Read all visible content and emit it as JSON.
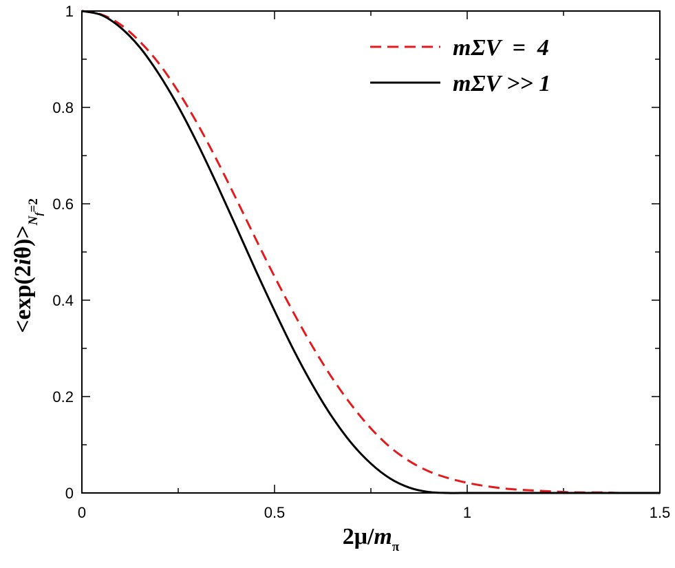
{
  "chart_data": {
    "type": "line",
    "xlabel": {
      "parts": [
        {
          "text": "2",
          "style": "normal"
        },
        {
          "text": "μ",
          "style": "normal"
        },
        {
          "text": "/",
          "style": "normal"
        },
        {
          "text": "m",
          "style": "italic"
        },
        {
          "text": "π",
          "style": "sub"
        }
      ]
    },
    "ylabel": {
      "parts": [
        {
          "text": "<exp(2",
          "style": "normal"
        },
        {
          "text": "i",
          "style": "italic"
        },
        {
          "text": "θ)>",
          "style": "normal"
        },
        {
          "text": "N",
          "style": "sub-italic"
        },
        {
          "text": "f",
          "style": "subsub-italic"
        },
        {
          "text": "=2",
          "style": "sub"
        }
      ]
    },
    "xlim": [
      0,
      1.5
    ],
    "ylim": [
      0,
      1
    ],
    "xticks": [
      {
        "value": 0,
        "label": "0"
      },
      {
        "value": 0.5,
        "label": "0.5"
      },
      {
        "value": 1,
        "label": "1"
      },
      {
        "value": 1.5,
        "label": "1.5"
      }
    ],
    "yticks": [
      {
        "value": 0,
        "label": "0"
      },
      {
        "value": 0.2,
        "label": "0.2"
      },
      {
        "value": 0.4,
        "label": "0.4"
      },
      {
        "value": 0.6,
        "label": "0.6"
      },
      {
        "value": 0.8,
        "label": "0.8"
      },
      {
        "value": 1,
        "label": "1"
      }
    ],
    "grid": false,
    "legend_position": "top-right",
    "series": [
      {
        "name": "mΣV  =  4",
        "color": "#e41a1c",
        "dash": "dashed",
        "x": [
          0,
          0.05,
          0.1,
          0.15,
          0.2,
          0.25,
          0.3,
          0.35,
          0.4,
          0.45,
          0.5,
          0.55,
          0.6,
          0.65,
          0.7,
          0.75,
          0.8,
          0.85,
          0.9,
          0.95,
          1.0,
          1.05,
          1.1,
          1.15,
          1.2,
          1.25,
          1.3,
          1.35,
          1.4,
          1.45,
          1.5
        ],
        "values": [
          1.0,
          0.993,
          0.972,
          0.937,
          0.891,
          0.833,
          0.766,
          0.691,
          0.611,
          0.529,
          0.449,
          0.373,
          0.302,
          0.238,
          0.182,
          0.134,
          0.095,
          0.066,
          0.045,
          0.031,
          0.021,
          0.014,
          0.009,
          0.006,
          0.004,
          0.002,
          0.001,
          0.001,
          0.0,
          0.0,
          0.0
        ]
      },
      {
        "name": "mΣV >> 1",
        "color": "#000000",
        "dash": "solid",
        "x": [
          0,
          0.05,
          0.1,
          0.15,
          0.2,
          0.25,
          0.3,
          0.35,
          0.4,
          0.45,
          0.5,
          0.55,
          0.6,
          0.65,
          0.7,
          0.75,
          0.8,
          0.85,
          0.9,
          0.95,
          1.0,
          1.05,
          1.1,
          1.15,
          1.2,
          1.25,
          1.3,
          1.35,
          1.4,
          1.45,
          1.5
        ],
        "values": [
          1.0,
          0.992,
          0.966,
          0.925,
          0.869,
          0.802,
          0.725,
          0.641,
          0.553,
          0.464,
          0.378,
          0.296,
          0.222,
          0.157,
          0.103,
          0.061,
          0.03,
          0.011,
          0.002,
          0.0,
          0.0,
          0.0,
          0.0,
          0.0,
          0.0,
          0.0,
          0.0,
          0.0,
          0.0,
          0.0,
          0.0
        ]
      }
    ]
  }
}
